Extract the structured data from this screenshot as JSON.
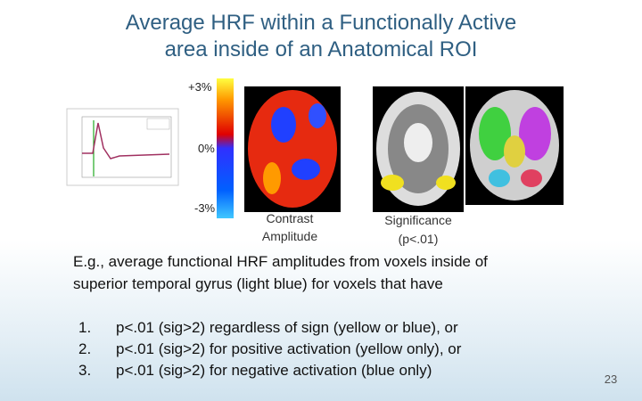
{
  "title": {
    "line1": "Average HRF within a Functionally Active",
    "line2": "area inside of an Anatomical ROI"
  },
  "colorbar": {
    "top": "+3%",
    "middle": "0%",
    "bottom": "-3%"
  },
  "captions": {
    "contrast": {
      "line1": "Contrast",
      "line2": "Amplitude"
    },
    "significance": {
      "line1": "Significance",
      "line2": "(p<.01)"
    }
  },
  "body": {
    "line1": "E.g., average functional HRF amplitudes from voxels inside of",
    "line2": "superior temporal gyrus (light blue) for voxels that have"
  },
  "list": [
    {
      "number": "1.",
      "text": "p<.01 (sig>2) regardless of sign (yellow or blue), or"
    },
    {
      "number": "2.",
      "text": "p<.01 (sig>2) for positive activation (yellow only), or"
    },
    {
      "number": "3.",
      "text": "p<.01 (sig>2) for negative activation (blue only)"
    }
  ],
  "page_number": "23"
}
